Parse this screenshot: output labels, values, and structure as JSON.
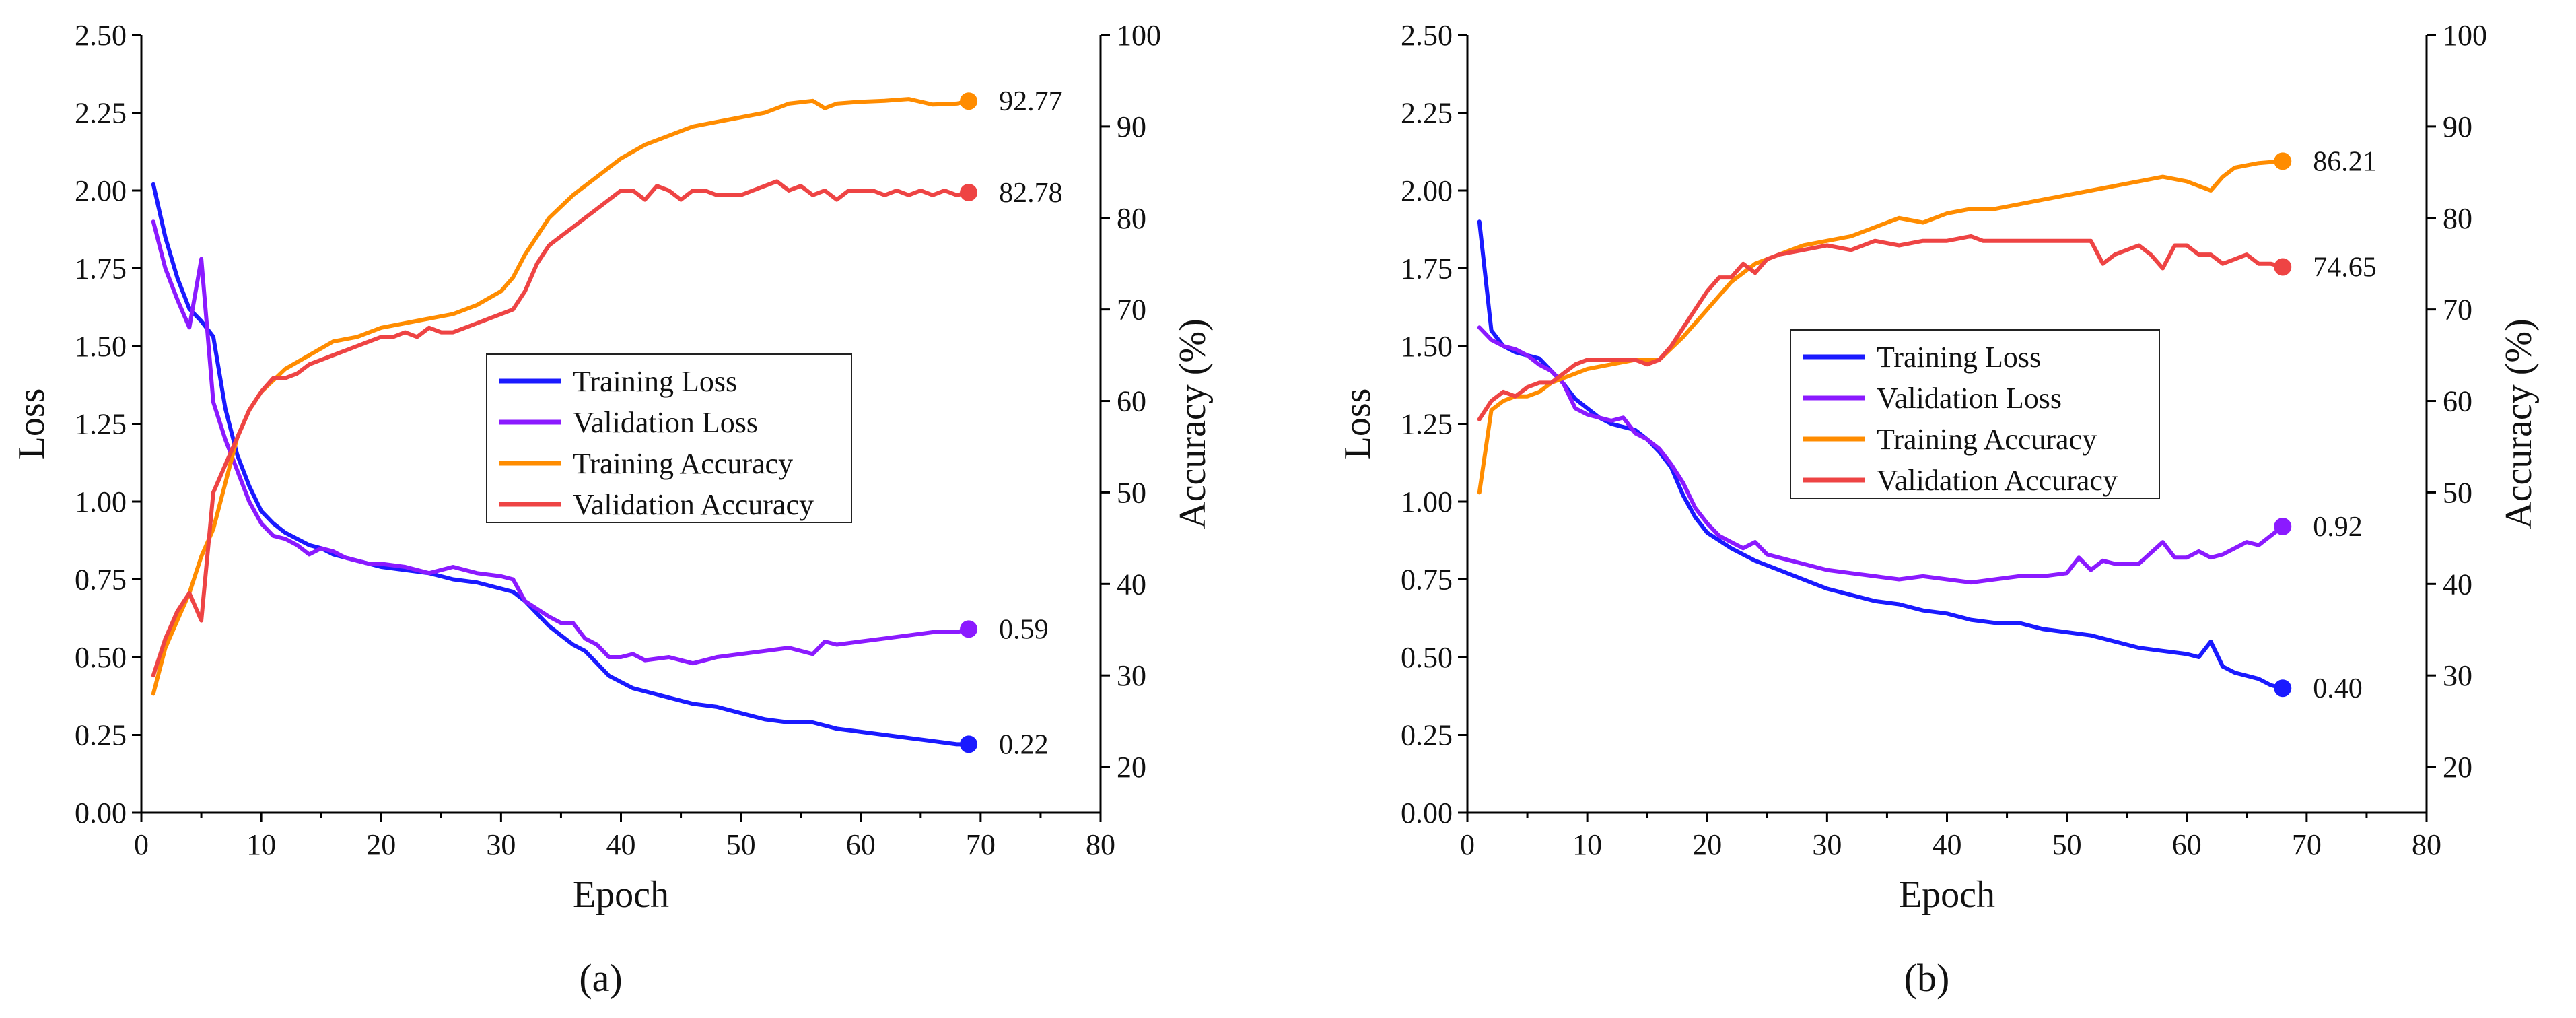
{
  "chart_data": [
    {
      "type": "line",
      "caption": "(a)",
      "xlabel": "Epoch",
      "ylabel": "Loss",
      "y2label": "Accuracy (%)",
      "xlim": [
        0,
        80
      ],
      "ylim": [
        0,
        2.5
      ],
      "y2lim": [
        15,
        100
      ],
      "xticks": [
        "0",
        "10",
        "20",
        "30",
        "40",
        "50",
        "60",
        "70",
        "80"
      ],
      "yticks": [
        "0.00",
        "0.25",
        "0.50",
        "0.75",
        "1.00",
        "1.25",
        "1.50",
        "1.75",
        "2.00",
        "2.25",
        "2.50"
      ],
      "y2ticks": [
        "20",
        "30",
        "40",
        "50",
        "60",
        "70",
        "80",
        "90",
        "100"
      ],
      "legend_position": "center",
      "series": [
        {
          "name": "Training Loss",
          "axis": "left",
          "color": "#1a1aff",
          "x": [
            1,
            2,
            3,
            4,
            5,
            6,
            7,
            8,
            9,
            10,
            11,
            12,
            13,
            14,
            15,
            16,
            17,
            18,
            19,
            20,
            22,
            24,
            25,
            26,
            28,
            30,
            31,
            32,
            34,
            35,
            36,
            37,
            38,
            39,
            40,
            41,
            42,
            44,
            46,
            48,
            50,
            52,
            54,
            56,
            57,
            58,
            60,
            62,
            64,
            66,
            68,
            69
          ],
          "y": [
            2.02,
            1.85,
            1.72,
            1.62,
            1.58,
            1.53,
            1.3,
            1.15,
            1.05,
            0.97,
            0.93,
            0.9,
            0.88,
            0.86,
            0.85,
            0.83,
            0.82,
            0.81,
            0.8,
            0.79,
            0.78,
            0.77,
            0.76,
            0.75,
            0.74,
            0.72,
            0.71,
            0.68,
            0.6,
            0.57,
            0.54,
            0.52,
            0.48,
            0.44,
            0.42,
            0.4,
            0.39,
            0.37,
            0.35,
            0.34,
            0.32,
            0.3,
            0.29,
            0.29,
            0.28,
            0.27,
            0.26,
            0.25,
            0.24,
            0.23,
            0.22,
            0.22
          ],
          "end_label": "0.22"
        },
        {
          "name": "Validation Loss",
          "axis": "left",
          "color": "#8b1aff",
          "x": [
            1,
            2,
            3,
            4,
            5,
            6,
            7,
            8,
            9,
            10,
            11,
            12,
            13,
            14,
            15,
            16,
            17,
            18,
            19,
            20,
            22,
            24,
            26,
            28,
            30,
            31,
            32,
            34,
            35,
            36,
            37,
            38,
            39,
            40,
            41,
            42,
            44,
            46,
            48,
            50,
            52,
            54,
            56,
            57,
            58,
            60,
            62,
            64,
            66,
            68,
            69
          ],
          "y": [
            1.9,
            1.75,
            1.65,
            1.56,
            1.78,
            1.32,
            1.2,
            1.1,
            1.0,
            0.93,
            0.89,
            0.88,
            0.86,
            0.83,
            0.85,
            0.84,
            0.82,
            0.81,
            0.8,
            0.8,
            0.79,
            0.77,
            0.79,
            0.77,
            0.76,
            0.75,
            0.68,
            0.63,
            0.61,
            0.61,
            0.56,
            0.54,
            0.5,
            0.5,
            0.51,
            0.49,
            0.5,
            0.48,
            0.5,
            0.51,
            0.52,
            0.53,
            0.51,
            0.55,
            0.54,
            0.55,
            0.56,
            0.57,
            0.58,
            0.58,
            0.59
          ],
          "end_label": "0.59"
        },
        {
          "name": "Training Accuracy",
          "axis": "right",
          "color": "#ff8c00",
          "x": [
            1,
            2,
            3,
            4,
            5,
            6,
            7,
            8,
            9,
            10,
            12,
            14,
            16,
            18,
            20,
            22,
            24,
            26,
            28,
            30,
            31,
            32,
            34,
            36,
            38,
            40,
            42,
            44,
            46,
            48,
            50,
            52,
            54,
            56,
            57,
            58,
            60,
            62,
            64,
            66,
            68,
            69
          ],
          "y": [
            28,
            33,
            36,
            39,
            43,
            46,
            51,
            56,
            59,
            61,
            63.5,
            65,
            66.5,
            67,
            68,
            68.5,
            69,
            69.5,
            70.5,
            72,
            73.5,
            76,
            80,
            82.5,
            84.5,
            86.5,
            88,
            89,
            90,
            90.5,
            91,
            91.5,
            92.5,
            92.8,
            92,
            92.5,
            92.7,
            92.8,
            93,
            92.4,
            92.5,
            92.77
          ],
          "end_label": "92.77"
        },
        {
          "name": "Validation Accuracy",
          "axis": "right",
          "color": "#ee4444",
          "x": [
            1,
            2,
            3,
            4,
            5,
            6,
            7,
            8,
            9,
            10,
            11,
            12,
            13,
            14,
            15,
            16,
            17,
            18,
            19,
            20,
            21,
            22,
            23,
            24,
            25,
            26,
            27,
            28,
            29,
            30,
            31,
            32,
            33,
            34,
            35,
            36,
            37,
            38,
            39,
            40,
            41,
            42,
            43,
            44,
            45,
            46,
            47,
            48,
            49,
            50,
            51,
            52,
            53,
            54,
            55,
            56,
            57,
            58,
            59,
            60,
            61,
            62,
            63,
            64,
            65,
            66,
            67,
            68,
            69
          ],
          "y": [
            30,
            34,
            37,
            39,
            36,
            50,
            53,
            56,
            59,
            61,
            62.5,
            62.5,
            63,
            64,
            64.5,
            65,
            65.5,
            66,
            66.5,
            67,
            67,
            67.5,
            67,
            68,
            67.5,
            67.5,
            68,
            68.5,
            69,
            69.5,
            70,
            72,
            75,
            77,
            78,
            79,
            80,
            81,
            82,
            83,
            83,
            82,
            83.5,
            83,
            82,
            83,
            83,
            82.5,
            82.5,
            82.5,
            83,
            83.5,
            84,
            83,
            83.5,
            82.5,
            83,
            82,
            83,
            83,
            83,
            82.5,
            83,
            82.5,
            83,
            82.5,
            83,
            82.5,
            82.78
          ],
          "end_label": "82.78"
        }
      ]
    },
    {
      "type": "line",
      "caption": "(b)",
      "xlabel": "Epoch",
      "ylabel": "Loss",
      "y2label": "Accuracy (%)",
      "xlim": [
        0,
        80
      ],
      "ylim": [
        0,
        2.5
      ],
      "y2lim": [
        15,
        100
      ],
      "xticks": [
        "0",
        "10",
        "20",
        "30",
        "40",
        "50",
        "60",
        "70",
        "80"
      ],
      "yticks": [
        "0.00",
        "0.25",
        "0.50",
        "0.75",
        "1.00",
        "1.25",
        "1.50",
        "1.75",
        "2.00",
        "2.25",
        "2.50"
      ],
      "y2ticks": [
        "20",
        "30",
        "40",
        "50",
        "60",
        "70",
        "80",
        "90",
        "100"
      ],
      "legend_position": "center",
      "series": [
        {
          "name": "Training Loss",
          "axis": "left",
          "color": "#1a1aff",
          "x": [
            1,
            2,
            3,
            4,
            5,
            6,
            7,
            8,
            9,
            10,
            11,
            12,
            13,
            14,
            15,
            16,
            17,
            18,
            19,
            20,
            22,
            24,
            26,
            28,
            30,
            32,
            34,
            36,
            38,
            40,
            42,
            44,
            46,
            48,
            50,
            52,
            54,
            56,
            58,
            60,
            61,
            62,
            63,
            64,
            65,
            66,
            67,
            68
          ],
          "y": [
            1.9,
            1.55,
            1.5,
            1.48,
            1.47,
            1.46,
            1.42,
            1.38,
            1.33,
            1.3,
            1.27,
            1.25,
            1.24,
            1.23,
            1.2,
            1.16,
            1.11,
            1.02,
            0.95,
            0.9,
            0.85,
            0.81,
            0.78,
            0.75,
            0.72,
            0.7,
            0.68,
            0.67,
            0.65,
            0.64,
            0.62,
            0.61,
            0.61,
            0.59,
            0.58,
            0.57,
            0.55,
            0.53,
            0.52,
            0.51,
            0.5,
            0.55,
            0.47,
            0.45,
            0.44,
            0.43,
            0.41,
            0.4
          ],
          "end_label": "0.40"
        },
        {
          "name": "Validation Loss",
          "axis": "left",
          "color": "#8b1aff",
          "x": [
            1,
            2,
            3,
            4,
            5,
            6,
            7,
            8,
            9,
            10,
            11,
            12,
            13,
            14,
            15,
            16,
            17,
            18,
            19,
            20,
            21,
            22,
            23,
            24,
            25,
            26,
            28,
            30,
            32,
            34,
            36,
            38,
            40,
            42,
            44,
            46,
            48,
            50,
            51,
            52,
            53,
            54,
            56,
            58,
            59,
            60,
            61,
            62,
            63,
            64,
            65,
            66,
            67,
            68
          ],
          "y": [
            1.56,
            1.52,
            1.5,
            1.49,
            1.47,
            1.44,
            1.42,
            1.38,
            1.3,
            1.28,
            1.27,
            1.26,
            1.27,
            1.22,
            1.2,
            1.17,
            1.12,
            1.06,
            0.98,
            0.93,
            0.89,
            0.87,
            0.85,
            0.87,
            0.83,
            0.82,
            0.8,
            0.78,
            0.77,
            0.76,
            0.75,
            0.76,
            0.75,
            0.74,
            0.75,
            0.76,
            0.76,
            0.77,
            0.82,
            0.78,
            0.81,
            0.8,
            0.8,
            0.87,
            0.82,
            0.82,
            0.84,
            0.82,
            0.83,
            0.85,
            0.87,
            0.86,
            0.89,
            0.92
          ],
          "end_label": "0.92"
        },
        {
          "name": "Training Accuracy",
          "axis": "right",
          "color": "#ff8c00",
          "x": [
            1,
            2,
            3,
            4,
            5,
            6,
            7,
            8,
            9,
            10,
            12,
            14,
            16,
            18,
            20,
            22,
            24,
            26,
            28,
            30,
            32,
            34,
            36,
            38,
            40,
            42,
            44,
            46,
            48,
            50,
            52,
            54,
            56,
            58,
            60,
            62,
            63,
            64,
            66,
            68
          ],
          "y": [
            50,
            59,
            60,
            60.5,
            60.5,
            61,
            62,
            62.5,
            63,
            63.5,
            64,
            64.5,
            64.5,
            67,
            70,
            73,
            75,
            76,
            77,
            77.5,
            78,
            79,
            80,
            79.5,
            80.5,
            81,
            81,
            81.5,
            82,
            82.5,
            83,
            83.5,
            84,
            84.5,
            84,
            83,
            84.5,
            85.5,
            86,
            86.21
          ],
          "end_label": "86.21"
        },
        {
          "name": "Validation Accuracy",
          "axis": "right",
          "color": "#ee4444",
          "x": [
            1,
            2,
            3,
            4,
            5,
            6,
            7,
            8,
            9,
            10,
            11,
            12,
            13,
            14,
            15,
            16,
            17,
            18,
            19,
            20,
            21,
            22,
            23,
            24,
            25,
            26,
            28,
            30,
            32,
            34,
            36,
            38,
            40,
            42,
            43,
            44,
            46,
            48,
            50,
            52,
            53,
            54,
            56,
            57,
            58,
            59,
            60,
            61,
            62,
            63,
            64,
            65,
            66,
            67,
            68
          ],
          "y": [
            58,
            60,
            61,
            60.5,
            61.5,
            62,
            62,
            63,
            64,
            64.5,
            64.5,
            64.5,
            64.5,
            64.5,
            64,
            64.5,
            66,
            68,
            70,
            72,
            73.5,
            73.5,
            75,
            74,
            75.5,
            76,
            76.5,
            77,
            76.5,
            77.5,
            77,
            77.5,
            77.5,
            78,
            77.5,
            77.5,
            77.5,
            77.5,
            77.5,
            77.5,
            75,
            76,
            77,
            76,
            74.5,
            77,
            77,
            76,
            76,
            75,
            75.5,
            76,
            75,
            75,
            74.65
          ],
          "end_label": "74.65"
        }
      ]
    }
  ]
}
